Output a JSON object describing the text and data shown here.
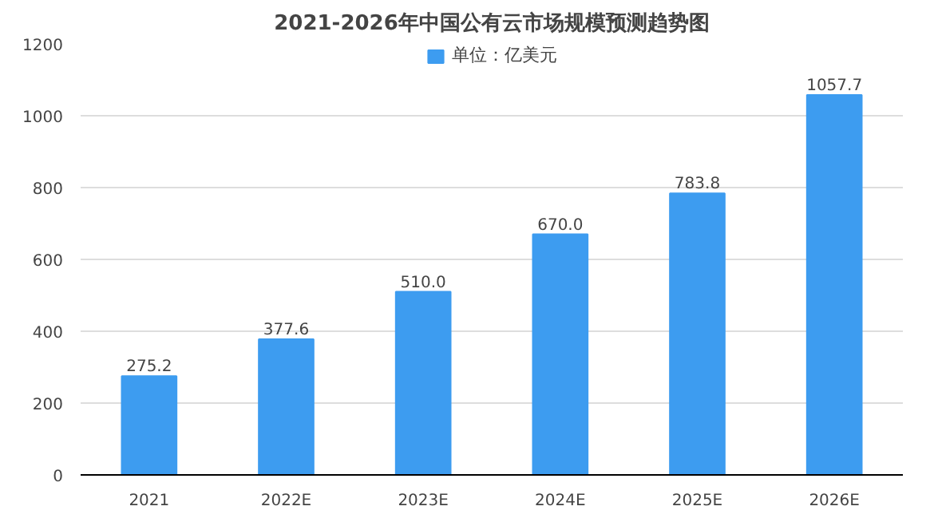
{
  "chart_data": {
    "type": "bar",
    "title": "2021-2026年中国公有云市场规模预测趋势图",
    "categories": [
      "2021",
      "2022E",
      "2023E",
      "2024E",
      "2025E",
      "2026E"
    ],
    "series": [
      {
        "name": "单位：亿美元",
        "color": "#3d9cf0",
        "values": [
          275.2,
          377.6,
          510.0,
          670.0,
          783.8,
          1057.7
        ]
      }
    ],
    "value_labels": [
      "275.2",
      "377.6",
      "510.0",
      "670.0",
      "783.8",
      "1057.7"
    ],
    "ylim": [
      0,
      1200
    ],
    "yticks": [
      0,
      200,
      400,
      600,
      800,
      1000,
      1200
    ],
    "grid": "y",
    "legend": "top"
  }
}
